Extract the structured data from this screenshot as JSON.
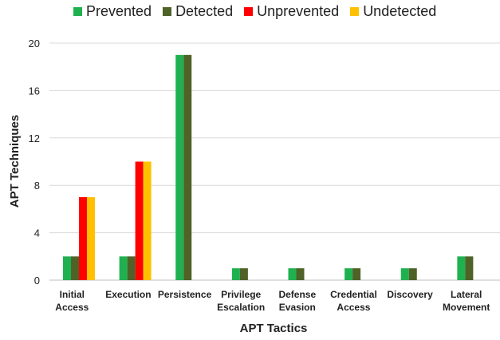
{
  "chart_data": {
    "type": "bar",
    "title": "",
    "xlabel": "APT Tactics",
    "ylabel": "APT Techniques",
    "ylim": [
      0,
      20
    ],
    "yticks": [
      0,
      4,
      8,
      12,
      16,
      20
    ],
    "grid": true,
    "legend_position": "top",
    "categories": [
      [
        "Initial",
        "Access"
      ],
      [
        "Execution"
      ],
      [
        "Persistence"
      ],
      [
        "Privilege",
        "Escalation"
      ],
      [
        "Defense",
        "Evasion"
      ],
      [
        "Credential",
        "Access"
      ],
      [
        "Discovery"
      ],
      [
        "Lateral",
        "Movement"
      ]
    ],
    "series": [
      {
        "name": "Prevented",
        "color": "#1fb14f",
        "values": [
          2,
          2,
          19,
          1,
          1,
          1,
          1,
          2
        ]
      },
      {
        "name": "Detected",
        "color": "#4f6228",
        "values": [
          2,
          2,
          19,
          1,
          1,
          1,
          1,
          2
        ]
      },
      {
        "name": "Unprevented",
        "color": "#ff0000",
        "values": [
          7,
          10,
          0,
          0,
          0,
          0,
          0,
          0
        ]
      },
      {
        "name": "Undetected",
        "color": "#ffc000",
        "values": [
          7,
          10,
          0,
          0,
          0,
          0,
          0,
          0
        ]
      }
    ]
  }
}
